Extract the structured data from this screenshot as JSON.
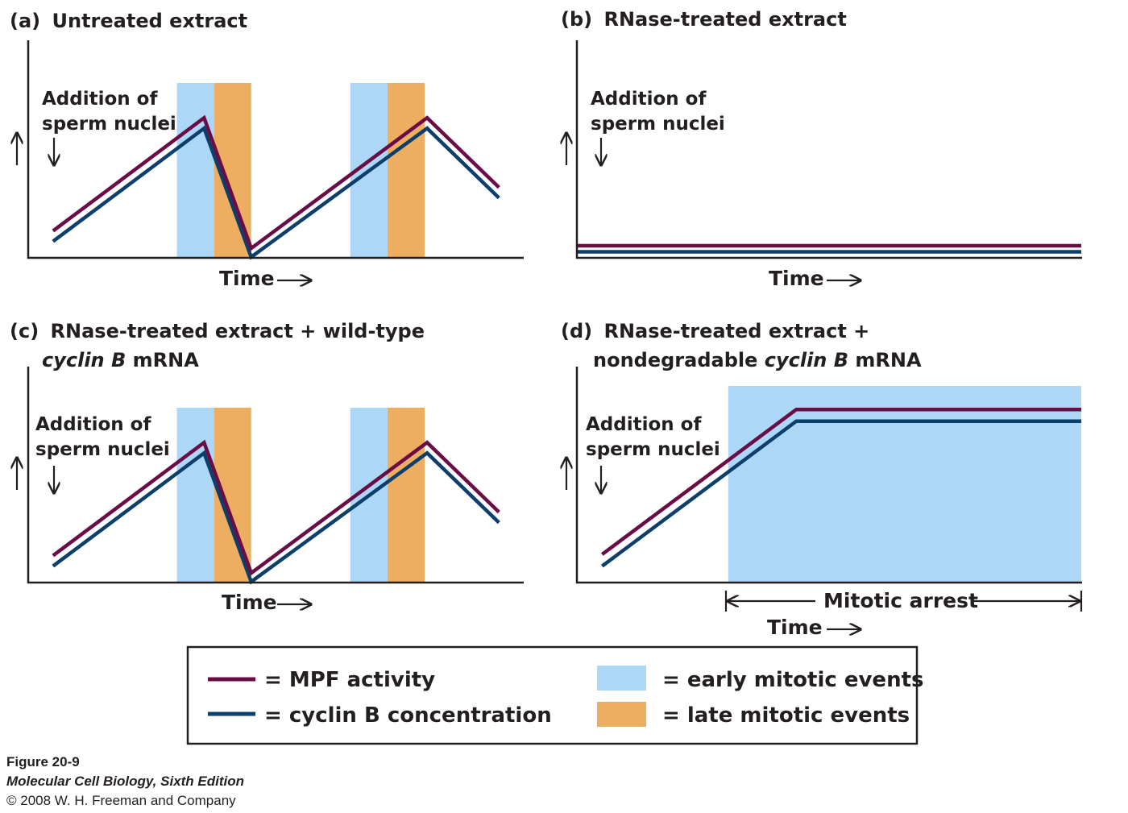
{
  "colors": {
    "mpf": "#6b0d45",
    "cyclin": "#0d3f6b",
    "early": "#acd7f7",
    "late": "#eeae62",
    "ink": "#231f20"
  },
  "legend": {
    "mpf": "= MPF activity",
    "cyclin": "= cyclin B concentration",
    "early": "= early mitotic events",
    "late": "= late mitotic events"
  },
  "credit": {
    "figure": "Figure 20-9",
    "book": "Molecular Cell Biology, Sixth Edition",
    "copyright": "© 2008 W. H. Freeman and Company"
  },
  "chart_data": [
    {
      "id": "a",
      "type": "line",
      "tag": "(a)",
      "title": "Untreated extract",
      "annotation": [
        "Addition of",
        "sperm nuclei"
      ],
      "xlabel": "Time",
      "ylabel": "",
      "xlim": [
        0,
        100
      ],
      "ylim": [
        0,
        100
      ],
      "bands": [
        {
          "kind": "early",
          "x": [
            30,
            37.5
          ]
        },
        {
          "kind": "late",
          "x": [
            37.5,
            45
          ]
        },
        {
          "kind": "early",
          "x": [
            65,
            72.5
          ]
        },
        {
          "kind": "late",
          "x": [
            72.5,
            80
          ]
        }
      ],
      "series": [
        {
          "name": "MPF activity",
          "color_key": "mpf",
          "x": [
            5,
            35.5,
            45,
            80.5,
            95
          ],
          "y": [
            15,
            80,
            5,
            80,
            40
          ]
        },
        {
          "name": "cyclin B concentration",
          "color_key": "cyclin",
          "x": [
            5,
            35.5,
            45,
            80.5,
            95
          ],
          "y": [
            9,
            74,
            0,
            74,
            34
          ]
        }
      ]
    },
    {
      "id": "b",
      "type": "line",
      "tag": "(b)",
      "title": "RNase-treated extract",
      "annotation": [
        "Addition of",
        "sperm nuclei"
      ],
      "xlabel": "Time",
      "ylabel": "",
      "xlim": [
        0,
        100
      ],
      "ylim": [
        0,
        100
      ],
      "bands": [],
      "series": [
        {
          "name": "MPF activity",
          "color_key": "mpf",
          "x": [
            0,
            100
          ],
          "y": [
            6.5,
            6.5
          ]
        },
        {
          "name": "cyclin B concentration",
          "color_key": "cyclin",
          "x": [
            0,
            100
          ],
          "y": [
            3,
            3
          ]
        }
      ]
    },
    {
      "id": "c",
      "type": "line",
      "tag": "(c)",
      "title": "RNase-treated extract + wild-type",
      "title_line2_italic": "cyclin B",
      "title_line2_rest": " mRNA",
      "annotation": [
        "Addition of",
        "sperm nuclei"
      ],
      "xlabel": "Time",
      "ylabel": "",
      "xlim": [
        0,
        100
      ],
      "ylim": [
        0,
        100
      ],
      "bands": [
        {
          "kind": "early",
          "x": [
            30,
            37.5
          ]
        },
        {
          "kind": "late",
          "x": [
            37.5,
            45
          ]
        },
        {
          "kind": "early",
          "x": [
            65,
            72.5
          ]
        },
        {
          "kind": "late",
          "x": [
            72.5,
            80
          ]
        }
      ],
      "series": [
        {
          "name": "MPF activity",
          "color_key": "mpf",
          "x": [
            5,
            35.5,
            45,
            80.5,
            95
          ],
          "y": [
            15,
            80,
            5,
            80,
            40
          ]
        },
        {
          "name": "cyclin B concentration",
          "color_key": "cyclin",
          "x": [
            5,
            35.5,
            45,
            80.5,
            95
          ],
          "y": [
            9,
            74,
            0,
            74,
            34
          ]
        }
      ]
    },
    {
      "id": "d",
      "type": "line",
      "tag": "(d)",
      "title": "RNase-treated extract +",
      "title_line2_pre": "nondegradable ",
      "title_line2_italic": "cyclin B",
      "title_line2_rest": " mRNA",
      "annotation": [
        "Addition of",
        "sperm nuclei"
      ],
      "xlabel": "Time",
      "ylabel": "",
      "arrest_label": "Mitotic arrest",
      "xlim": [
        0,
        100
      ],
      "ylim": [
        0,
        100
      ],
      "bands": [
        {
          "kind": "early",
          "x": [
            30,
            100
          ]
        }
      ],
      "series": [
        {
          "name": "MPF activity",
          "color_key": "mpf",
          "x": [
            5,
            43.5,
            100
          ],
          "y": [
            14,
            88,
            88
          ]
        },
        {
          "name": "cyclin B concentration",
          "color_key": "cyclin",
          "x": [
            5,
            43.5,
            100
          ],
          "y": [
            8,
            82,
            82
          ]
        }
      ]
    }
  ]
}
